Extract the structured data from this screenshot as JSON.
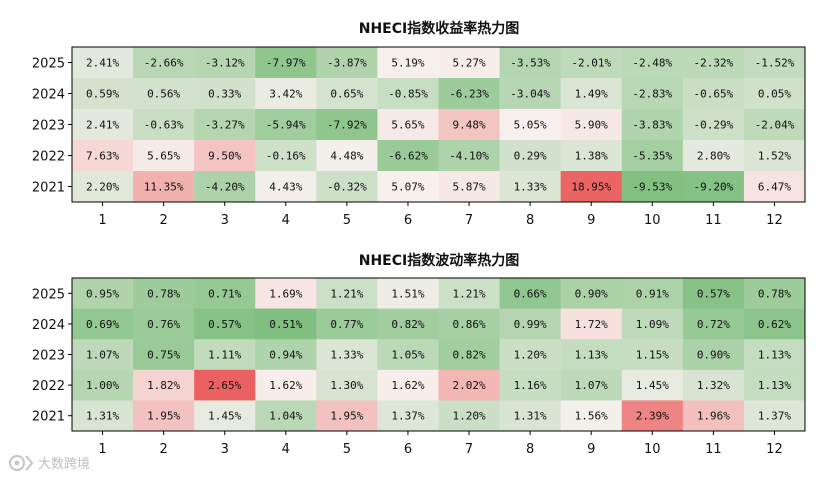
{
  "colors": {
    "negative": "#7fbf7f",
    "neutral": "#f7f1ee",
    "positive": "#ea5a5a"
  },
  "watermark": {
    "text": "大数跨境",
    "icon": "camera-logo-icon"
  },
  "chart_data": [
    {
      "type": "heatmap",
      "title": "NHECI指数收益率热力图",
      "x": [
        "1",
        "2",
        "3",
        "4",
        "5",
        "6",
        "7",
        "8",
        "9",
        "10",
        "11",
        "12"
      ],
      "y": [
        "2025",
        "2024",
        "2023",
        "2022",
        "2021"
      ],
      "values": [
        [
          2.41,
          -2.66,
          -3.12,
          -7.97,
          -3.87,
          5.19,
          5.27,
          -3.53,
          -2.01,
          -2.48,
          -2.32,
          -1.52
        ],
        [
          0.59,
          0.56,
          0.33,
          3.42,
          0.65,
          -0.85,
          -6.23,
          -3.04,
          1.49,
          -2.83,
          -0.65,
          0.05
        ],
        [
          2.41,
          -0.63,
          -3.27,
          -5.94,
          -7.92,
          5.65,
          9.48,
          5.05,
          5.9,
          -3.83,
          -0.29,
          -2.04
        ],
        [
          7.63,
          5.65,
          9.5,
          -0.16,
          4.48,
          -6.62,
          -4.1,
          0.29,
          1.38,
          -5.35,
          2.8,
          1.52
        ],
        [
          2.2,
          11.35,
          -4.2,
          4.43,
          -0.32,
          5.07,
          5.87,
          1.33,
          18.95,
          -9.53,
          -9.2,
          6.47
        ]
      ],
      "labels": [
        [
          "2.41%",
          "-2.66%",
          "-3.12%",
          "-7.97%",
          "-3.87%",
          "5.19%",
          "5.27%",
          "-3.53%",
          "-2.01%",
          "-2.48%",
          "-2.32%",
          "-1.52%"
        ],
        [
          "0.59%",
          "0.56%",
          "0.33%",
          "3.42%",
          "0.65%",
          "-0.85%",
          "-6.23%",
          "-3.04%",
          "1.49%",
          "-2.83%",
          "-0.65%",
          "0.05%"
        ],
        [
          "2.41%",
          "-0.63%",
          "-3.27%",
          "-5.94%",
          "-7.92%",
          "5.65%",
          "9.48%",
          "5.05%",
          "5.90%",
          "-3.83%",
          "-0.29%",
          "-2.04%"
        ],
        [
          "7.63%",
          "5.65%",
          "9.50%",
          "-0.16%",
          "4.48%",
          "-6.62%",
          "-4.10%",
          "0.29%",
          "1.38%",
          "-5.35%",
          "2.80%",
          "1.52%"
        ],
        [
          "2.20%",
          "11.35%",
          "-4.20%",
          "4.43%",
          "-0.32%",
          "5.07%",
          "5.87%",
          "1.33%",
          "18.95%",
          "-9.53%",
          "-9.20%",
          "6.47%"
        ]
      ],
      "color_range": [
        -10,
        20
      ],
      "colormap": "green-white-red"
    },
    {
      "type": "heatmap",
      "title": "NHECI指数波动率热力图",
      "x": [
        "1",
        "2",
        "3",
        "4",
        "5",
        "6",
        "7",
        "8",
        "9",
        "10",
        "11",
        "12"
      ],
      "y": [
        "2025",
        "2024",
        "2023",
        "2022",
        "2021"
      ],
      "values": [
        [
          0.95,
          0.78,
          0.71,
          1.69,
          1.21,
          1.51,
          1.21,
          0.66,
          0.9,
          0.91,
          0.57,
          0.78
        ],
        [
          0.69,
          0.76,
          0.57,
          0.51,
          0.77,
          0.82,
          0.86,
          0.99,
          1.72,
          1.09,
          0.72,
          0.62
        ],
        [
          1.07,
          0.75,
          1.11,
          0.94,
          1.33,
          1.05,
          0.82,
          1.2,
          1.13,
          1.15,
          0.9,
          1.13
        ],
        [
          1.0,
          1.82,
          2.65,
          1.62,
          1.3,
          1.62,
          2.02,
          1.16,
          1.07,
          1.45,
          1.32,
          1.13
        ],
        [
          1.31,
          1.95,
          1.45,
          1.04,
          1.95,
          1.37,
          1.2,
          1.31,
          1.56,
          2.39,
          1.96,
          1.37
        ]
      ],
      "labels": [
        [
          "0.95%",
          "0.78%",
          "0.71%",
          "1.69%",
          "1.21%",
          "1.51%",
          "1.21%",
          "0.66%",
          "0.90%",
          "0.91%",
          "0.57%",
          "0.78%"
        ],
        [
          "0.69%",
          "0.76%",
          "0.57%",
          "0.51%",
          "0.77%",
          "0.82%",
          "0.86%",
          "0.99%",
          "1.72%",
          "1.09%",
          "0.72%",
          "0.62%"
        ],
        [
          "1.07%",
          "0.75%",
          "1.11%",
          "0.94%",
          "1.33%",
          "1.05%",
          "0.82%",
          "1.20%",
          "1.13%",
          "1.15%",
          "0.90%",
          "1.13%"
        ],
        [
          "1.00%",
          "1.82%",
          "2.65%",
          "1.62%",
          "1.30%",
          "1.62%",
          "2.02%",
          "1.16%",
          "1.07%",
          "1.45%",
          "1.32%",
          "1.13%"
        ],
        [
          "1.31%",
          "1.95%",
          "1.45%",
          "1.04%",
          "1.95%",
          "1.37%",
          "1.20%",
          "1.31%",
          "1.56%",
          "2.39%",
          "1.96%",
          "1.37%"
        ]
      ],
      "color_range": [
        0.5,
        2.7
      ],
      "colormap": "green-white-red"
    }
  ]
}
